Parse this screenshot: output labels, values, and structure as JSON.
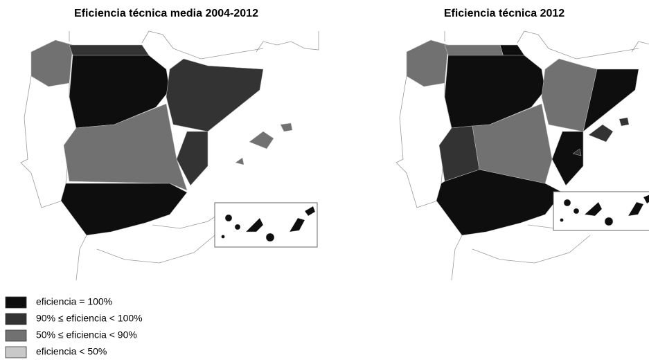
{
  "maps": [
    {
      "title": "Eficiencia técnica media 2004-2012"
    },
    {
      "title": "Eficiencia técnica 2012"
    }
  ],
  "legend": [
    {
      "label": "eficiencia = 100%",
      "color": "#0e0e0e"
    },
    {
      "label": "90% ≤ eficiencia < 100%",
      "color": "#333333"
    },
    {
      "label": "50% ≤ eficiencia < 90%",
      "color": "#717171"
    },
    {
      "label": "eficiencia < 50%",
      "color": "#c9c9c9"
    }
  ]
}
